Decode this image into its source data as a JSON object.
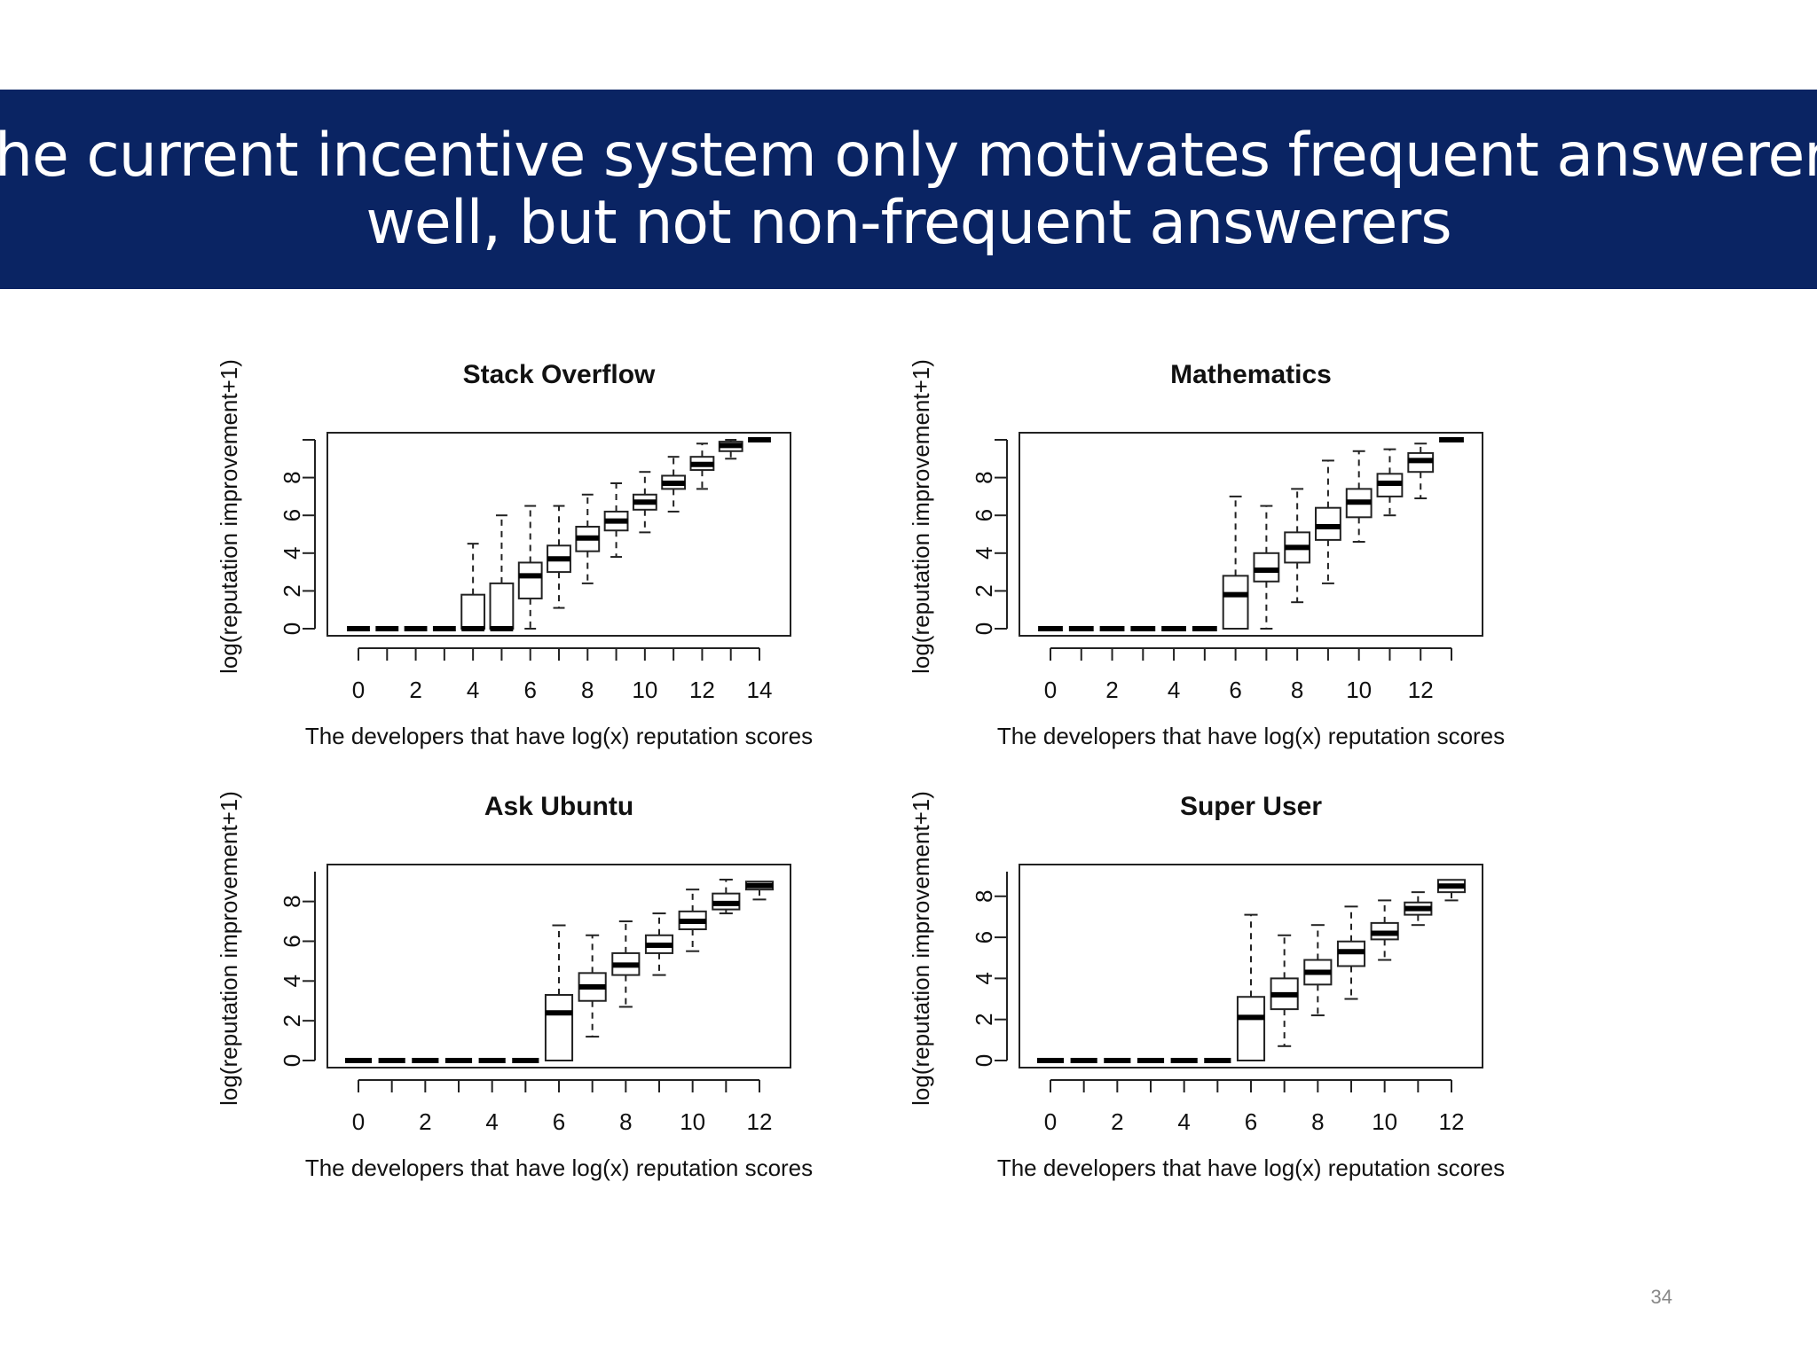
{
  "slide": {
    "title_line1": "The current incentive system only motivates frequent answerers",
    "title_line2": "well, but not non-frequent answerers",
    "page_number": "34",
    "header_color": "#0a2463"
  },
  "chart_data": [
    {
      "type": "box",
      "title": "Stack Overflow",
      "xlabel": "The developers that have log(x) reputation scores",
      "ylabel": "log(reputation improvement+1)",
      "x_ticks": [
        0,
        2,
        4,
        6,
        8,
        10,
        12,
        14
      ],
      "y_ticks": [
        0,
        2,
        4,
        6,
        8
      ],
      "ylim": [
        0,
        10
      ],
      "boxes": [
        {
          "x": 0,
          "lower": 0,
          "q1": 0,
          "median": 0,
          "q3": 0,
          "upper": 0
        },
        {
          "x": 1,
          "lower": 0,
          "q1": 0,
          "median": 0,
          "q3": 0,
          "upper": 0
        },
        {
          "x": 2,
          "lower": 0,
          "q1": 0,
          "median": 0,
          "q3": 0,
          "upper": 0
        },
        {
          "x": 3,
          "lower": 0,
          "q1": 0,
          "median": 0,
          "q3": 0,
          "upper": 0
        },
        {
          "x": 4,
          "lower": 0,
          "q1": 0,
          "median": 0,
          "q3": 1.8,
          "upper": 4.5
        },
        {
          "x": 5,
          "lower": 0,
          "q1": 0,
          "median": 0,
          "q3": 2.4,
          "upper": 6.0
        },
        {
          "x": 6,
          "lower": 0,
          "q1": 1.6,
          "median": 2.8,
          "q3": 3.5,
          "upper": 6.5
        },
        {
          "x": 7,
          "lower": 1.1,
          "q1": 3.0,
          "median": 3.7,
          "q3": 4.4,
          "upper": 6.5
        },
        {
          "x": 8,
          "lower": 2.4,
          "q1": 4.1,
          "median": 4.8,
          "q3": 5.4,
          "upper": 7.1
        },
        {
          "x": 9,
          "lower": 3.8,
          "q1": 5.2,
          "median": 5.7,
          "q3": 6.2,
          "upper": 7.7
        },
        {
          "x": 10,
          "lower": 5.1,
          "q1": 6.3,
          "median": 6.7,
          "q3": 7.1,
          "upper": 8.3
        },
        {
          "x": 11,
          "lower": 6.2,
          "q1": 7.4,
          "median": 7.7,
          "q3": 8.1,
          "upper": 9.1
        },
        {
          "x": 12,
          "lower": 7.4,
          "q1": 8.4,
          "median": 8.7,
          "q3": 9.1,
          "upper": 9.8
        },
        {
          "x": 13,
          "lower": 9.0,
          "q1": 9.4,
          "median": 9.7,
          "q3": 9.9,
          "upper": 10.0
        },
        {
          "x": 14,
          "lower": 10.0,
          "q1": 10.0,
          "median": 10.0,
          "q3": 10.0,
          "upper": 10.0
        }
      ]
    },
    {
      "type": "box",
      "title": "Mathematics",
      "xlabel": "The developers that have log(x) reputation scores",
      "ylabel": "log(reputation improvement+1)",
      "x_ticks": [
        0,
        2,
        4,
        6,
        8,
        10,
        12
      ],
      "y_ticks": [
        0,
        2,
        4,
        6,
        8
      ],
      "ylim": [
        0,
        10
      ],
      "boxes": [
        {
          "x": 0,
          "lower": 0,
          "q1": 0,
          "median": 0,
          "q3": 0,
          "upper": 0
        },
        {
          "x": 1,
          "lower": 0,
          "q1": 0,
          "median": 0,
          "q3": 0,
          "upper": 0
        },
        {
          "x": 2,
          "lower": 0,
          "q1": 0,
          "median": 0,
          "q3": 0,
          "upper": 0
        },
        {
          "x": 3,
          "lower": 0,
          "q1": 0,
          "median": 0,
          "q3": 0,
          "upper": 0
        },
        {
          "x": 4,
          "lower": 0,
          "q1": 0,
          "median": 0,
          "q3": 0,
          "upper": 0
        },
        {
          "x": 5,
          "lower": 0,
          "q1": 0,
          "median": 0,
          "q3": 0,
          "upper": 0
        },
        {
          "x": 6,
          "lower": 0,
          "q1": 0,
          "median": 1.8,
          "q3": 2.8,
          "upper": 7.0
        },
        {
          "x": 7,
          "lower": 0,
          "q1": 2.5,
          "median": 3.1,
          "q3": 4.0,
          "upper": 6.5
        },
        {
          "x": 8,
          "lower": 1.4,
          "q1": 3.5,
          "median": 4.3,
          "q3": 5.1,
          "upper": 7.4
        },
        {
          "x": 9,
          "lower": 2.4,
          "q1": 4.7,
          "median": 5.4,
          "q3": 6.4,
          "upper": 8.9
        },
        {
          "x": 10,
          "lower": 4.6,
          "q1": 5.9,
          "median": 6.7,
          "q3": 7.4,
          "upper": 9.4
        },
        {
          "x": 11,
          "lower": 6.0,
          "q1": 7.0,
          "median": 7.7,
          "q3": 8.2,
          "upper": 9.5
        },
        {
          "x": 12,
          "lower": 6.9,
          "q1": 8.3,
          "median": 8.9,
          "q3": 9.3,
          "upper": 9.8
        },
        {
          "x": 13,
          "lower": 10.0,
          "q1": 10.0,
          "median": 10.0,
          "q3": 10.0,
          "upper": 10.0
        }
      ]
    },
    {
      "type": "box",
      "title": "Ask Ubuntu",
      "xlabel": "The developers that have log(x) reputation scores",
      "ylabel": "log(reputation improvement+1)",
      "x_ticks": [
        0,
        2,
        4,
        6,
        8,
        10,
        12
      ],
      "y_ticks": [
        0,
        2,
        4,
        6,
        8
      ],
      "ylim": [
        0,
        9.5
      ],
      "boxes": [
        {
          "x": 0,
          "lower": 0,
          "q1": 0,
          "median": 0,
          "q3": 0,
          "upper": 0
        },
        {
          "x": 1,
          "lower": 0,
          "q1": 0,
          "median": 0,
          "q3": 0,
          "upper": 0
        },
        {
          "x": 2,
          "lower": 0,
          "q1": 0,
          "median": 0,
          "q3": 0,
          "upper": 0
        },
        {
          "x": 3,
          "lower": 0,
          "q1": 0,
          "median": 0,
          "q3": 0,
          "upper": 0
        },
        {
          "x": 4,
          "lower": 0,
          "q1": 0,
          "median": 0,
          "q3": 0,
          "upper": 0
        },
        {
          "x": 5,
          "lower": 0,
          "q1": 0,
          "median": 0,
          "q3": 0,
          "upper": 0
        },
        {
          "x": 6,
          "lower": 0,
          "q1": 0,
          "median": 2.4,
          "q3": 3.3,
          "upper": 6.8
        },
        {
          "x": 7,
          "lower": 1.2,
          "q1": 3.0,
          "median": 3.7,
          "q3": 4.4,
          "upper": 6.3
        },
        {
          "x": 8,
          "lower": 2.7,
          "q1": 4.3,
          "median": 4.8,
          "q3": 5.4,
          "upper": 7.0
        },
        {
          "x": 9,
          "lower": 4.3,
          "q1": 5.4,
          "median": 5.8,
          "q3": 6.3,
          "upper": 7.4
        },
        {
          "x": 10,
          "lower": 5.5,
          "q1": 6.6,
          "median": 7.0,
          "q3": 7.5,
          "upper": 8.6
        },
        {
          "x": 11,
          "lower": 7.4,
          "q1": 7.6,
          "median": 7.9,
          "q3": 8.4,
          "upper": 9.1
        },
        {
          "x": 12,
          "lower": 8.1,
          "q1": 8.6,
          "median": 8.8,
          "q3": 9.0,
          "upper": 9.0
        }
      ]
    },
    {
      "type": "box",
      "title": "Super User",
      "xlabel": "The developers that have log(x) reputation scores",
      "ylabel": "log(reputation improvement+1)",
      "x_ticks": [
        0,
        2,
        4,
        6,
        8,
        10,
        12
      ],
      "y_ticks": [
        0,
        2,
        4,
        6,
        8
      ],
      "ylim": [
        0,
        9.2
      ],
      "boxes": [
        {
          "x": 0,
          "lower": 0,
          "q1": 0,
          "median": 0,
          "q3": 0,
          "upper": 0
        },
        {
          "x": 1,
          "lower": 0,
          "q1": 0,
          "median": 0,
          "q3": 0,
          "upper": 0
        },
        {
          "x": 2,
          "lower": 0,
          "q1": 0,
          "median": 0,
          "q3": 0,
          "upper": 0
        },
        {
          "x": 3,
          "lower": 0,
          "q1": 0,
          "median": 0,
          "q3": 0,
          "upper": 0
        },
        {
          "x": 4,
          "lower": 0,
          "q1": 0,
          "median": 0,
          "q3": 0,
          "upper": 0
        },
        {
          "x": 5,
          "lower": 0,
          "q1": 0,
          "median": 0,
          "q3": 0,
          "upper": 0
        },
        {
          "x": 6,
          "lower": 0,
          "q1": 0,
          "median": 2.1,
          "q3": 3.1,
          "upper": 7.1
        },
        {
          "x": 7,
          "lower": 0.7,
          "q1": 2.5,
          "median": 3.2,
          "q3": 4.0,
          "upper": 6.1
        },
        {
          "x": 8,
          "lower": 2.2,
          "q1": 3.7,
          "median": 4.3,
          "q3": 4.9,
          "upper": 6.6
        },
        {
          "x": 9,
          "lower": 3.0,
          "q1": 4.6,
          "median": 5.3,
          "q3": 5.8,
          "upper": 7.5
        },
        {
          "x": 10,
          "lower": 4.9,
          "q1": 5.9,
          "median": 6.2,
          "q3": 6.7,
          "upper": 7.8
        },
        {
          "x": 11,
          "lower": 6.6,
          "q1": 7.1,
          "median": 7.4,
          "q3": 7.7,
          "upper": 8.2
        },
        {
          "x": 12,
          "lower": 7.8,
          "q1": 8.2,
          "median": 8.5,
          "q3": 8.8,
          "upper": 8.8
        }
      ]
    }
  ]
}
